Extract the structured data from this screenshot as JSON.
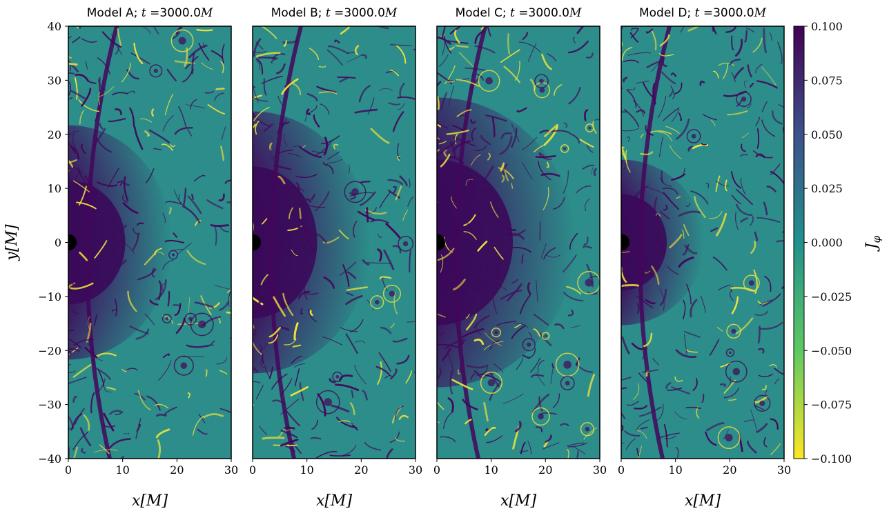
{
  "chart_data": {
    "type": "heatmap",
    "panels": [
      {
        "title": "Model A; t =3000.0M",
        "title_prefix": "Model A; ",
        "title_var": "t",
        "title_mid": " =3000.0",
        "title_unit": "M"
      },
      {
        "title": "Model B; t =3000.0M",
        "title_prefix": "Model B; ",
        "title_var": "t",
        "title_mid": " =3000.0",
        "title_unit": "M"
      },
      {
        "title": "Model C; t =3000.0M",
        "title_prefix": "Model C; ",
        "title_var": "t",
        "title_mid": " =3000.0",
        "title_unit": "M"
      },
      {
        "title": "Model D; t =3000.0M",
        "title_prefix": "Model D; ",
        "title_var": "t",
        "title_mid": " =3000.0",
        "title_unit": "M"
      }
    ],
    "xlabel": "x[M]",
    "ylabel": "y[M]",
    "xlim": [
      0,
      30
    ],
    "ylim": [
      -40,
      40
    ],
    "xticks": [
      0,
      10,
      20,
      30
    ],
    "xtick_labels": [
      "0",
      "10",
      "20",
      "30"
    ],
    "yticks": [
      40,
      30,
      20,
      10,
      0,
      -10,
      -20,
      -30,
      -40
    ],
    "ytick_labels": [
      "40",
      "30",
      "20",
      "10",
      "0",
      "−10",
      "−20",
      "−30",
      "−40"
    ],
    "colorbar": {
      "label": "J_φ",
      "label_main": "J",
      "label_sub": "φ",
      "range": [
        -0.1,
        0.1
      ],
      "ticks": [
        0.1,
        0.075,
        0.05,
        0.025,
        0.0,
        -0.025,
        -0.05,
        -0.075,
        -0.1
      ],
      "tick_labels": [
        "0.100",
        "0.075",
        "0.050",
        "0.025",
        "0.000",
        "−0.025",
        "−0.050",
        "−0.075",
        "−0.100"
      ],
      "colormap": [
        "#fde725",
        "#5ec962",
        "#21918c",
        "#3b528b",
        "#440154"
      ]
    },
    "grid": false,
    "legend": "none",
    "colors": {
      "background_field": "#2c8d8a",
      "turbulent_core": "#3a0a5a",
      "filament_dark": "#44065a",
      "filament_bright": "#f2e43a",
      "black_hole": "#000000"
    }
  }
}
